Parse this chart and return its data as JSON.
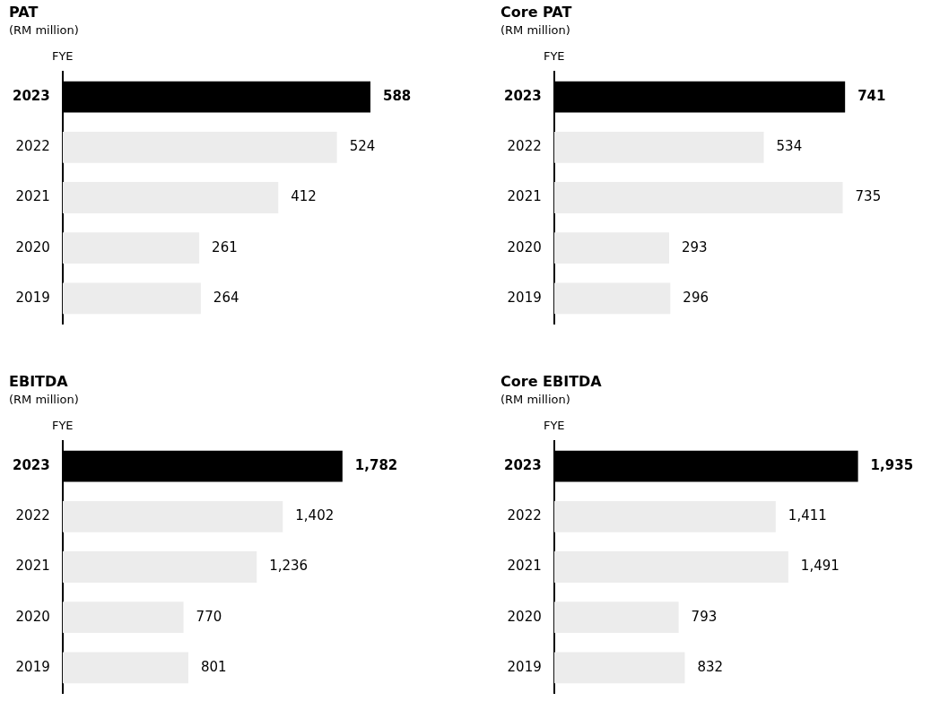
{
  "chart_data": [
    {
      "type": "bar",
      "orientation": "horizontal",
      "title": "PAT",
      "subtitle": "(RM million)",
      "ylabel": "FYE",
      "categories": [
        "2023",
        "2022",
        "2021",
        "2020",
        "2019"
      ],
      "values": [
        588,
        524,
        412,
        261,
        264
      ],
      "value_labels": [
        "588",
        "524",
        "412",
        "261",
        "264"
      ],
      "colors": [
        "#000000",
        "#ececec",
        "#ececec",
        "#ececec",
        "#ececec"
      ],
      "legend": false,
      "tick_labels": "y"
    },
    {
      "type": "bar",
      "orientation": "horizontal",
      "title": "Core PAT",
      "subtitle": "(RM million)",
      "ylabel": "FYE",
      "categories": [
        "2023",
        "2022",
        "2021",
        "2020",
        "2019"
      ],
      "values": [
        741,
        534,
        735,
        293,
        296
      ],
      "value_labels": [
        "741",
        "534",
        "735",
        "293",
        "296"
      ],
      "colors": [
        "#000000",
        "#ececec",
        "#ececec",
        "#ececec",
        "#ececec"
      ],
      "legend": false,
      "tick_labels": "y"
    },
    {
      "type": "bar",
      "orientation": "horizontal",
      "title": "EBITDA",
      "subtitle": "(RM million)",
      "ylabel": "FYE",
      "categories": [
        "2023",
        "2022",
        "2021",
        "2020",
        "2019"
      ],
      "values": [
        1782,
        1402,
        1236,
        770,
        801
      ],
      "value_labels": [
        "1,782",
        "1,402",
        "1,236",
        "770",
        "801"
      ],
      "colors": [
        "#000000",
        "#ececec",
        "#ececec",
        "#ececec",
        "#ececec"
      ],
      "legend": false,
      "tick_labels": "y"
    },
    {
      "type": "bar",
      "orientation": "horizontal",
      "title": "Core EBITDA",
      "subtitle": "(RM million)",
      "ylabel": "FYE",
      "categories": [
        "2023",
        "2022",
        "2021",
        "2020",
        "2019"
      ],
      "values": [
        1935,
        1411,
        1491,
        793,
        832
      ],
      "value_labels": [
        "1,935",
        "1,411",
        "1,491",
        "793",
        "832"
      ],
      "colors": [
        "#000000",
        "#ececec",
        "#ececec",
        "#ececec",
        "#ececec"
      ],
      "legend": false,
      "tick_labels": "y"
    }
  ]
}
